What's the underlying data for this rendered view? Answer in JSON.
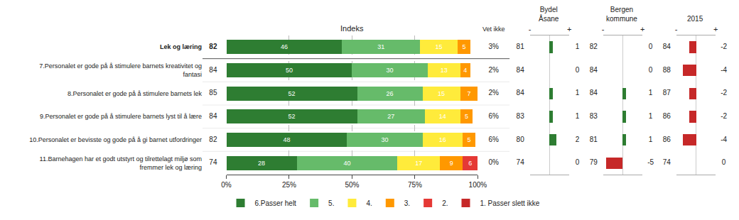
{
  "chart_data": [
    {
      "type": "bar",
      "title": "Indeks",
      "orientation": "horizontal",
      "stacked": true,
      "categories": [
        "Lek og læring",
        "7.Personalet er gode på å stimulere barnets kreativitet og\nfantasi",
        "8.Personalet er gode på å stimulere barnets lek",
        "9.Personalet er gode på å stimulere barnets lyst til å lære",
        "10.Personalet er bevisste og gode på å gi barnet utfordringer",
        "11.Barnehagen har et godt utstyrt og tilrettelagt miljø som\nfremmer lek og læring"
      ],
      "index": [
        82,
        84,
        85,
        84,
        82,
        74
      ],
      "series": [
        {
          "name": "6.Passer helt",
          "color": "#2e7d32",
          "values": [
            46,
            50,
            52,
            52,
            48,
            28
          ]
        },
        {
          "name": "5.",
          "color": "#66bb6a",
          "values": [
            31,
            30,
            26,
            27,
            30,
            40
          ]
        },
        {
          "name": "4.",
          "color": "#ffeb3b",
          "values": [
            15,
            13,
            15,
            14,
            16,
            17
          ]
        },
        {
          "name": "3.",
          "color": "#ff9800",
          "values": [
            5,
            4,
            7,
            5,
            5,
            9
          ]
        },
        {
          "name": "2.",
          "color": "#e53935",
          "values": [
            0,
            0,
            0,
            0,
            0,
            6
          ]
        },
        {
          "name": "1. Passer slett ikke",
          "color": "#c62828",
          "values": [
            0,
            0,
            0,
            0,
            0,
            0
          ]
        }
      ],
      "xlim": [
        0,
        100
      ],
      "xticks": [
        {
          "value": 0,
          "label": "0%"
        },
        {
          "value": 25,
          "label": "25%"
        },
        {
          "value": 50,
          "label": "50%"
        },
        {
          "value": 75,
          "label": "75%"
        },
        {
          "value": 100,
          "label": "100%"
        }
      ],
      "grid": true,
      "legend": "bottom",
      "data_labels": true
    },
    {
      "type": "table",
      "title": "Vet ikke",
      "categories": [
        "Lek og læring",
        "7.Personalet er gode på å stimulere barnets kreativitet og\nfantasi",
        "8.Personalet er gode på å stimulere barnets lek",
        "9.Personalet er gode på å stimulere barnets lyst til å lære",
        "10.Personalet er bevisste og gode på å gi barnet utfordringer",
        "11.Barnehagen har et godt utstyrt og tilrettelagt miljø som\nfremmer lek og læring"
      ],
      "values": [
        3,
        2,
        2,
        6,
        6,
        0
      ],
      "value_labels": [
        "3%",
        "2%",
        "2%",
        "6%",
        "6%",
        "0%"
      ]
    },
    {
      "type": "bar",
      "title": "Bydel\nÅsane",
      "orientation": "horizontal",
      "categories": [
        "Lek og læring",
        "7.Personalet er gode på å stimulere barnets kreativitet og\nfantasi",
        "8.Personalet er gode på å stimulere barnets lek",
        "9.Personalet er gode på å stimulere barnets lyst til å lære",
        "10.Personalet er bevisste og gode på å gi barnet utfordringer",
        "11.Barnehagen har et godt utstyrt og tilrettelagt miljø som\nfremmer lek og læring"
      ],
      "values": [
        1,
        0,
        1,
        1,
        2,
        0
      ],
      "index": [
        81,
        84,
        84,
        83,
        80,
        74
      ],
      "colors": [
        "#2e7d32",
        null,
        "#2e7d32",
        "#2e7d32",
        "#2e7d32",
        null
      ],
      "xlim": [
        -6,
        6
      ],
      "xticks": [
        {
          "value": -6,
          "label": "-"
        },
        {
          "value": 6,
          "label": "+"
        }
      ],
      "data_labels": true
    },
    {
      "type": "bar",
      "title": "Bergen\nkommune",
      "orientation": "horizontal",
      "categories": [
        "Lek og læring",
        "7.Personalet er gode på å stimulere barnets kreativitet og\nfantasi",
        "8.Personalet er gode på å stimulere barnets lek",
        "9.Personalet er gode på å stimulere barnets lyst til å lære",
        "10.Personalet er bevisste og gode på å gi barnet utfordringer",
        "11.Barnehagen har et godt utstyrt og tilrettelagt miljø som\nfremmer lek og læring"
      ],
      "values": [
        0,
        0,
        1,
        1,
        1,
        -5
      ],
      "index": [
        82,
        84,
        84,
        83,
        81,
        79
      ],
      "colors": [
        null,
        null,
        "#2e7d32",
        "#2e7d32",
        "#2e7d32",
        "#c62828"
      ],
      "xlim": [
        -6,
        6
      ],
      "xticks": [
        {
          "value": -6,
          "label": "-"
        },
        {
          "value": 6,
          "label": "+"
        }
      ],
      "data_labels": true
    },
    {
      "type": "bar",
      "title": "2015",
      "orientation": "horizontal",
      "categories": [
        "Lek og læring",
        "7.Personalet er gode på å stimulere barnets kreativitet og\nfantasi",
        "8.Personalet er gode på å stimulere barnets lek",
        "9.Personalet er gode på å stimulere barnets lyst til å lære",
        "10.Personalet er bevisste og gode på å gi barnet utfordringer",
        "11.Barnehagen har et godt utstyrt og tilrettelagt miljø som\nfremmer lek og læring"
      ],
      "values": [
        -2,
        -4,
        -2,
        -2,
        -4,
        0
      ],
      "index": [
        84,
        88,
        87,
        86,
        86,
        74
      ],
      "colors": [
        "#c62828",
        "#c62828",
        "#c62828",
        "#c62828",
        "#c62828",
        null
      ],
      "xlim": [
        -6,
        6
      ],
      "xticks": [
        {
          "value": -6,
          "label": "-"
        },
        {
          "value": 6,
          "label": "+"
        }
      ],
      "data_labels": true
    }
  ]
}
